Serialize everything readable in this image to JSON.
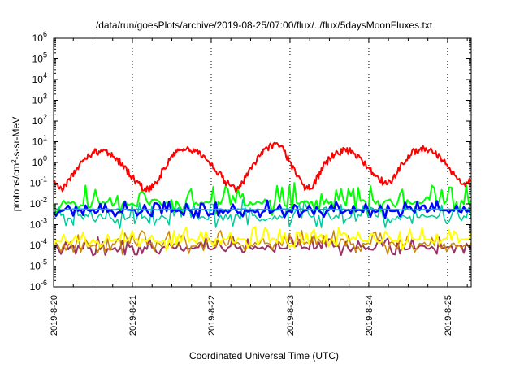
{
  "chart_data": {
    "type": "line",
    "title": "/data/run/goesPlots/archive/2019-08-25/07:00/flux/../flux/5daysMoonFluxes.txt",
    "xlabel": "Coordinated Universal Time (UTC)",
    "ylabel": "protons/cm2-s-sr-MeV",
    "y_scale": "log",
    "ylim_exponents": [
      -6,
      6
    ],
    "y_tick_base": "10",
    "y_tick_exponents": [
      "-6",
      "-5",
      "-4",
      "-3",
      "-2",
      "-1",
      "0",
      "1",
      "2",
      "3",
      "4",
      "5",
      "6"
    ],
    "x_range_days": [
      0,
      5.3
    ],
    "x_ticks": [
      {
        "day": 0,
        "label": "2019-8-20"
      },
      {
        "day": 1,
        "label": "2019-8-21"
      },
      {
        "day": 2,
        "label": "2019-8-22"
      },
      {
        "day": 3,
        "label": "2019-8-23"
      },
      {
        "day": 4,
        "label": "2019-8-24"
      },
      {
        "day": 5,
        "label": "2019-8-25"
      }
    ],
    "grid": "dotted-vertical",
    "series": [
      {
        "color": "#ff0000",
        "width": 2,
        "pattern": "moon_red",
        "x": [
          0,
          0.1,
          0.2,
          0.3,
          0.4,
          0.5,
          0.6,
          0.7,
          0.8,
          0.9,
          1.0,
          1.1,
          1.2,
          1.3,
          1.4,
          1.5,
          1.6,
          1.7,
          1.8,
          1.9,
          2.0,
          2.1,
          2.2,
          2.3,
          2.4,
          2.5,
          2.6,
          2.7,
          2.8,
          2.9,
          3.0,
          3.1,
          3.2,
          3.3,
          3.4,
          3.5,
          3.6,
          3.7,
          3.8,
          3.9,
          4.0,
          4.1,
          4.2,
          4.3,
          4.4,
          4.5,
          4.6,
          4.7,
          4.8,
          4.9,
          5.0,
          5.1,
          5.2,
          5.3
        ],
        "y": [
          0.1,
          0.05,
          0.15,
          0.5,
          1.5,
          3,
          3.5,
          2.5,
          1.5,
          0.6,
          0.2,
          0.07,
          0.05,
          0.1,
          0.5,
          2,
          4,
          5,
          3.5,
          2,
          0.8,
          0.3,
          0.1,
          0.05,
          0.1,
          0.5,
          2,
          5,
          8,
          6,
          1,
          0.2,
          0.05,
          0.08,
          0.5,
          1.5,
          3,
          4,
          3,
          1.5,
          0.5,
          0.2,
          0.1,
          0.12,
          0.6,
          2,
          4,
          4.5,
          3.5,
          2,
          0.6,
          0.2,
          0.08,
          0.15
        ]
      },
      {
        "color": "#00ff00",
        "width": 2,
        "pattern": "spiky",
        "base": 0.012,
        "spread": 3.5,
        "seed": 11
      },
      {
        "color": "#00cc99",
        "width": 1.5,
        "pattern": "spiky",
        "base": 0.0025,
        "spread": 3.0,
        "seed": 23
      },
      {
        "color": "#0000ff",
        "width": 2.5,
        "pattern": "spiky",
        "base": 0.0045,
        "spread": 2.0,
        "seed": 37
      },
      {
        "color": "#00aaff",
        "width": 1.5,
        "pattern": "flat",
        "base": 0.0055,
        "spread": 1.2,
        "seed": 41
      },
      {
        "color": "#ffff00",
        "width": 2,
        "pattern": "spiky",
        "base": 0.00018,
        "spread": 2.5,
        "seed": 53
      },
      {
        "color": "#cc8800",
        "width": 1.5,
        "pattern": "spiky",
        "base": 0.00012,
        "spread": 2.5,
        "seed": 67
      },
      {
        "color": "#993366",
        "width": 2,
        "pattern": "spiky",
        "base": 8e-05,
        "spread": 2.2,
        "seed": 79
      }
    ]
  }
}
